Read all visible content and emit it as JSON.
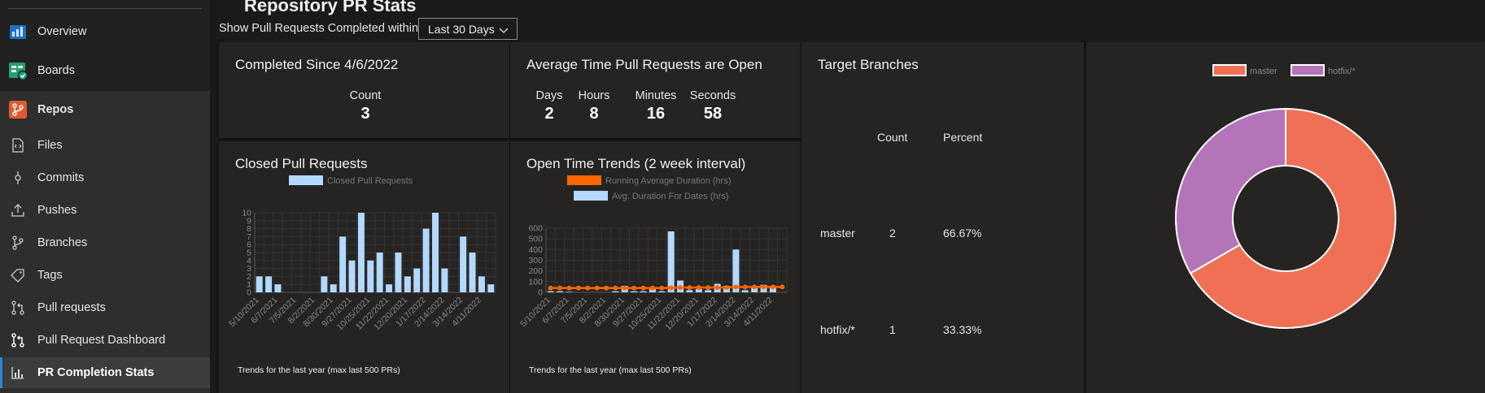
{
  "sidebar": {
    "items": [
      {
        "label": "Overview",
        "icon": "overview-icon"
      },
      {
        "label": "Boards",
        "icon": "boards-icon"
      },
      {
        "label": "Repos",
        "icon": "repos-icon"
      },
      {
        "label": "Files",
        "icon": "files-icon"
      },
      {
        "label": "Commits",
        "icon": "commits-icon"
      },
      {
        "label": "Pushes",
        "icon": "pushes-icon"
      },
      {
        "label": "Branches",
        "icon": "branches-icon"
      },
      {
        "label": "Tags",
        "icon": "tags-icon"
      },
      {
        "label": "Pull requests",
        "icon": "pull-requests-icon"
      },
      {
        "label": "Pull Request Dashboard",
        "icon": "pr-dashboard-icon"
      },
      {
        "label": "PR Completion Stats",
        "icon": "bar-chart-icon"
      }
    ]
  },
  "header": {
    "title": "Repository PR Stats",
    "filter_label": "Show Pull Requests Completed within:",
    "filter_value": "Last 30 Days"
  },
  "completed": {
    "title": "Completed Since 4/6/2022",
    "count_label": "Count",
    "count_value": "3"
  },
  "avg_open": {
    "title": "Average Time Pull Requests are Open",
    "days_label": "Days",
    "days_value": "2",
    "hours_label": "Hours",
    "hours_value": "8",
    "minutes_label": "Minutes",
    "minutes_value": "16",
    "seconds_label": "Seconds",
    "seconds_value": "58"
  },
  "target_branches": {
    "title": "Target Branches",
    "col_count": "Count",
    "col_percent": "Percent",
    "rows": [
      {
        "branch": "master",
        "count": "2",
        "percent": "66.67%"
      },
      {
        "branch": "hotfix/*",
        "count": "1",
        "percent": "33.33%"
      }
    ]
  },
  "closed_pr": {
    "title": "Closed Pull Requests",
    "footnote": "Trends for the last year (max last 500 PRs)"
  },
  "open_trends": {
    "title": "Open Time Trends (2 week interval)",
    "footnote": "Trends for the last year (max last 500 PRs)"
  },
  "chart_data": [
    {
      "type": "bar",
      "name": "closed-pull-requests",
      "legend": [
        "Closed Pull Requests"
      ],
      "categories": [
        "5/10/2021",
        "5/24/2021",
        "6/7/2021",
        "6/21/2021",
        "7/5/2021",
        "7/19/2021",
        "8/2/2021",
        "8/16/2021",
        "8/30/2021",
        "9/13/2021",
        "9/27/2021",
        "10/11/2021",
        "10/25/2021",
        "11/8/2021",
        "11/22/2021",
        "12/6/2021",
        "12/20/2021",
        "1/3/2022",
        "1/17/2022",
        "1/31/2022",
        "2/14/2022",
        "2/28/2022",
        "3/14/2022",
        "3/28/2022",
        "4/11/2022",
        "4/25/2022"
      ],
      "tick_labels": [
        "5/10/2021",
        "6/7/2021",
        "7/5/2021",
        "8/2/2021",
        "8/30/2021",
        "9/27/2021",
        "10/25/2021",
        "11/22/2021",
        "12/20/2021",
        "1/17/2022",
        "2/14/2022",
        "3/14/2022",
        "4/11/2022"
      ],
      "series": [
        {
          "name": "Closed Pull Requests",
          "color": "#b3d9ff",
          "values": [
            2,
            2,
            1,
            0,
            0,
            0,
            0,
            2,
            1,
            7,
            4,
            10,
            4,
            5,
            1,
            5,
            2,
            3,
            8,
            10,
            3,
            0,
            7,
            5,
            2,
            1
          ]
        }
      ],
      "ylim": [
        0,
        10
      ],
      "yticks": [
        0,
        1,
        2,
        3,
        4,
        5,
        6,
        7,
        8,
        9,
        10
      ],
      "grid": true,
      "legend_position": "top"
    },
    {
      "type": "bar",
      "name": "open-time-trends",
      "legend": [
        "Running Average Duration (hrs)",
        "Avg. Duration For Dates (hrs)"
      ],
      "categories": [
        "5/10/2021",
        "5/24/2021",
        "6/7/2021",
        "6/21/2021",
        "7/5/2021",
        "7/19/2021",
        "8/2/2021",
        "8/16/2021",
        "8/30/2021",
        "9/13/2021",
        "9/27/2021",
        "10/11/2021",
        "10/25/2021",
        "11/8/2021",
        "11/22/2021",
        "12/6/2021",
        "12/20/2021",
        "1/3/2022",
        "1/17/2022",
        "1/31/2022",
        "2/14/2022",
        "2/28/2022",
        "3/14/2022",
        "3/28/2022",
        "4/11/2022",
        "4/25/2022"
      ],
      "tick_labels": [
        "5/10/2021",
        "6/7/2021",
        "7/5/2021",
        "8/2/2021",
        "8/30/2021",
        "9/27/2021",
        "10/25/2021",
        "11/22/2021",
        "12/20/2021",
        "1/17/2022",
        "2/14/2022",
        "3/14/2022",
        "4/11/2022"
      ],
      "series": [
        {
          "name": "Avg. Duration For Dates (hrs)",
          "type": "bar",
          "color": "#b3d9ff",
          "values": [
            10,
            10,
            5,
            0,
            0,
            0,
            0,
            10,
            60,
            10,
            10,
            30,
            10,
            570,
            110,
            20,
            30,
            20,
            80,
            60,
            400,
            20,
            40,
            70,
            60,
            0
          ]
        },
        {
          "name": "Running Average Duration (hrs)",
          "type": "line",
          "color": "#ff6600",
          "values": [
            40,
            40,
            40,
            40,
            40,
            40,
            40,
            40,
            40,
            40,
            40,
            40,
            40,
            42,
            45,
            45,
            45,
            45,
            45,
            45,
            50,
            50,
            50,
            50,
            50,
            50
          ]
        }
      ],
      "ylim": [
        0,
        600
      ],
      "yticks": [
        0,
        100,
        200,
        300,
        400,
        500,
        600
      ],
      "grid": true,
      "legend_position": "top"
    },
    {
      "type": "pie",
      "name": "target-branches-donut",
      "labels": [
        "master",
        "hotfix/*"
      ],
      "values": [
        2,
        1
      ],
      "colors": [
        "#f07055",
        "#b374b8"
      ],
      "legend_position": "top"
    }
  ]
}
